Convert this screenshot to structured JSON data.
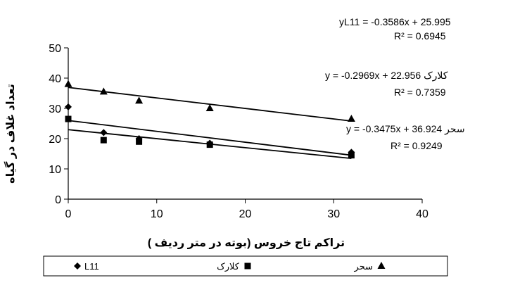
{
  "chart_data": {
    "type": "scatter",
    "xlabel": "تراکم تاج خروس (بوته در متر ردیف )",
    "ylabel": "تعداد غلاف در گیاه",
    "xlim": [
      0,
      40
    ],
    "ylim": [
      0,
      50
    ],
    "x_ticks": [
      "0",
      "10",
      "20",
      "30",
      "40"
    ],
    "y_ticks": [
      "0",
      "10",
      "20",
      "30",
      "40",
      "50"
    ],
    "grid": false,
    "legend_position": "bottom",
    "x": [
      0,
      4,
      8,
      16,
      32
    ],
    "series": [
      {
        "name": "L11",
        "marker": "diamond",
        "values": [
          30.5,
          22,
          20,
          18.5,
          15.5
        ],
        "trendline": {
          "slope": -0.3586,
          "intercept": 25.995
        },
        "equation": "yL11 = -0.3586x + 25.995",
        "r2": "R² = 0.6945"
      },
      {
        "name": "کلارک",
        "marker": "square",
        "values": [
          26.5,
          19.5,
          19,
          18,
          14.5
        ],
        "trendline": {
          "slope": -0.2969,
          "intercept": 22.956
        },
        "equation": "y = -0.2969x + 22.956 کلارک",
        "r2": "R² = 0.7359"
      },
      {
        "name": "سحر",
        "marker": "triangle",
        "values": [
          38,
          35.5,
          32.5,
          30,
          26.5
        ],
        "trendline": {
          "slope": -0.3475,
          "intercept": 36.924
        },
        "equation": "y = -0.3475x + 36.924 سحر",
        "r2": "R² = 0.9249"
      }
    ],
    "colors": {
      "marker": "#000000",
      "line": "#000000"
    }
  }
}
